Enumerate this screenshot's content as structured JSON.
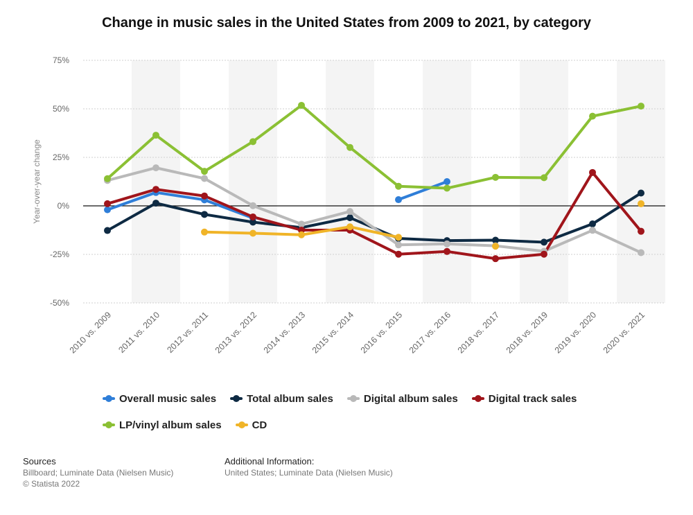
{
  "title": "Change in music sales in the United States from 2009 to 2021, by category",
  "colors": {
    "overall": "#2f7ed8",
    "total_album": "#0e2a43",
    "digital_album": "#b9b9b9",
    "digital_track": "#a0151b",
    "vinyl": "#8bc034",
    "cd": "#f0b428",
    "band": "#f4f4f4",
    "grid": "#cfcfcf",
    "axis_text": "#666666"
  },
  "chart_data": {
    "type": "line",
    "title": "Change in music sales in the United States from 2009 to 2021, by category",
    "xlabel": "",
    "ylabel": "Year-over-year change",
    "ylim": [
      -50,
      75
    ],
    "yticks": [
      "75%",
      "50%",
      "25%",
      "0%",
      "-25%",
      "-50%"
    ],
    "ytick_values": [
      75,
      50,
      25,
      0,
      -25,
      -50
    ],
    "grid": true,
    "legend_position": "bottom",
    "categories": [
      "2010 vs. 2009",
      "2011 vs. 2010",
      "2012 vs. 2011",
      "2013 vs. 2012",
      "2014 vs. 2013",
      "2015 vs. 2014",
      "2016 vs. 2015",
      "2017 vs. 2016",
      "2018 vs. 2017",
      "2018 vs. 2019",
      "2019 vs. 2020",
      "2020 vs. 2021"
    ],
    "series": [
      {
        "name": "Overall music sales",
        "color_key": "overall",
        "values": [
          -2,
          6.9,
          3.1,
          -6.3,
          null,
          null,
          3.2,
          12.5,
          null,
          null,
          null,
          null
        ]
      },
      {
        "name": "Total album sales",
        "color_key": "total_album",
        "values": [
          -12.7,
          1.4,
          -4.4,
          -8.4,
          -11.2,
          -6.1,
          -16.8,
          -17.9,
          -17.7,
          -18.7,
          -9.3,
          6.6
        ]
      },
      {
        "name": "Digital album sales",
        "color_key": "digital_album",
        "values": [
          13.1,
          19.6,
          14.1,
          0.1,
          -9.4,
          -2.9,
          -20.1,
          -19.6,
          -20.6,
          -23.4,
          -12.6,
          -24.1
        ]
      },
      {
        "name": "Digital track sales",
        "color_key": "digital_track",
        "values": [
          1.1,
          8.5,
          5.1,
          -5.7,
          -12.5,
          -12.5,
          -24.9,
          -23.5,
          -27.2,
          -24.9,
          17.2,
          -13.1
        ]
      },
      {
        "name": "LP/vinyl album sales",
        "color_key": "vinyl",
        "values": [
          14,
          36.4,
          17.8,
          33.1,
          51.8,
          30.1,
          10.1,
          9.1,
          14.7,
          14.5,
          46.2,
          51.4
        ]
      },
      {
        "name": "CD",
        "color_key": "cd",
        "values": [
          null,
          null,
          -13.5,
          -14.1,
          -14.9,
          -10.8,
          -16.2,
          null,
          -20.8,
          null,
          null,
          1.1
        ]
      }
    ]
  },
  "footer": {
    "sources_heading": "Sources",
    "sources_line1": "Billboard; Luminate Data (Nielsen Music)",
    "sources_line2": "© Statista 2022",
    "info_heading": "Additional Information:",
    "info_line1": "United States; Luminate Data (Nielsen Music)"
  }
}
